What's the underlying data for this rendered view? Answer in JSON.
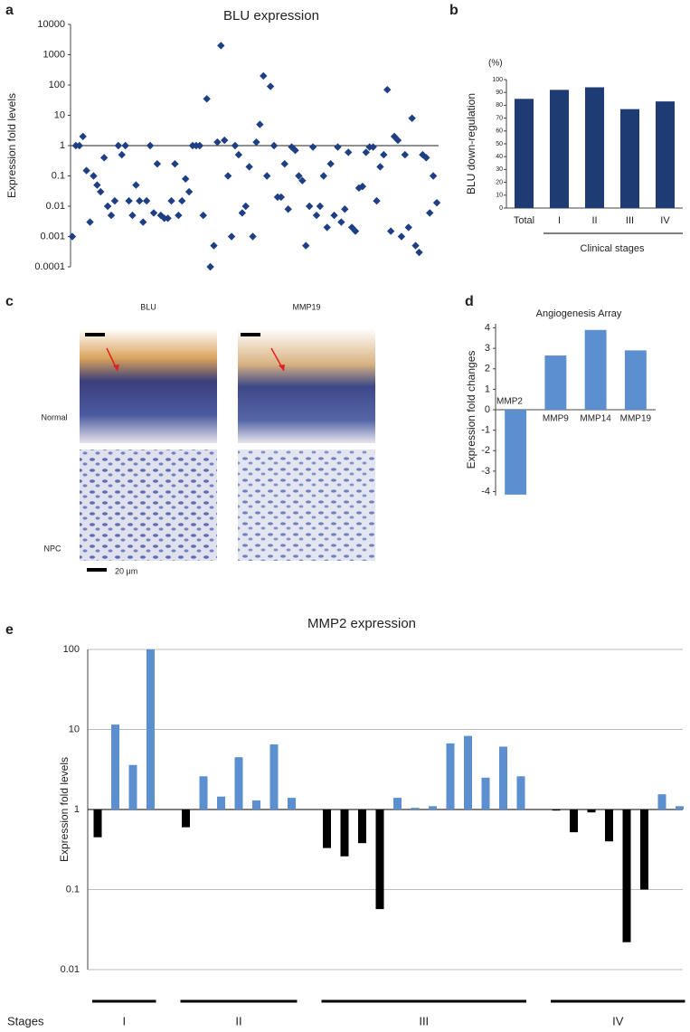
{
  "chart_data": [
    {
      "panel": "a",
      "type": "scatter",
      "title": "BLU expression",
      "y_label": "Expression fold levels",
      "values": [
        0.001,
        1,
        1,
        2,
        0.15,
        0.003,
        0.1,
        0.05,
        0.03,
        0.4,
        0.01,
        0.005,
        0.015,
        1,
        0.5,
        1,
        0.015,
        0.005,
        0.05,
        0.015,
        0.003,
        0.015,
        1,
        0.006,
        0.25,
        0.005,
        0.004,
        0.004,
        0.015,
        0.25,
        0.005,
        0.015,
        0.08,
        0.03,
        1,
        1,
        1,
        0.005,
        35,
        0.0001,
        0.0005,
        1.3,
        2000,
        1.5,
        0.1,
        0.001,
        1,
        0.5,
        0.006,
        0.01,
        0.2,
        0.001,
        1.3,
        5,
        200,
        0.1,
        90,
        1,
        0.02,
        0.02,
        0.25,
        0.008,
        0.9,
        0.7,
        0.1,
        0.07,
        0.0005,
        0.01,
        0.9,
        0.005,
        0.01,
        0.1,
        0.002,
        0.25,
        0.005,
        0.9,
        0.003,
        0.008,
        0.6,
        0.002,
        0.0015,
        0.04,
        0.045,
        0.6,
        0.9,
        0.9,
        0.015,
        0.2,
        0.5,
        70,
        0.0015,
        2,
        1.5,
        0.001,
        0.5,
        0.002,
        8,
        0.0005,
        0.0003,
        0.5,
        0.4,
        0.006,
        0.1,
        0.013
      ],
      "color": "#1f3f85",
      "log_y": true,
      "ylim": [
        0.0001,
        10000
      ],
      "yticks": [
        10000,
        1000,
        100,
        10,
        1,
        0.1,
        0.01,
        0.001,
        0.0001
      ],
      "reference_line": 1
    },
    {
      "panel": "b",
      "type": "bar",
      "unit_label": "(%)",
      "y_label": "BLU down-regulation",
      "categories": [
        "Total",
        "I",
        "II",
        "III",
        "IV"
      ],
      "values": [
        85,
        92,
        94,
        77,
        83
      ],
      "color": "#1f3b73",
      "ylim": [
        0,
        100
      ],
      "yticks": [
        0,
        10,
        20,
        30,
        40,
        50,
        60,
        70,
        80,
        90,
        100
      ],
      "group_label": "Clinical stages"
    },
    {
      "panel": "d",
      "type": "bar",
      "title": "Angiogenesis Array",
      "y_label": "Expression fold changes",
      "categories": [
        "MMP2",
        "MMP9",
        "MMP14",
        "MMP19"
      ],
      "values": [
        -4.15,
        2.65,
        3.9,
        2.9
      ],
      "color": "#5b8fd0",
      "ylim": [
        -4.2,
        4.2
      ],
      "yticks": [
        -4,
        -3,
        -2,
        -1,
        0,
        1,
        2,
        3,
        4
      ]
    },
    {
      "panel": "e",
      "type": "bar",
      "title": "MMP2  expression",
      "y_label": "Expression fold levels",
      "x_label": "Stages",
      "log_y": true,
      "ylim": [
        0.01,
        100
      ],
      "yticks": [
        100,
        10,
        1,
        0.1,
        0.01
      ],
      "baseline": 1,
      "grid": true,
      "color_above": "#5b8fd0",
      "color_below": "#000000",
      "stages": [
        {
          "label": "I",
          "values": [
            0.45,
            11.5,
            3.6,
            100
          ]
        },
        {
          "label": "II",
          "values": [
            0.6,
            2.6,
            1.45,
            4.5,
            1.3,
            6.5,
            1.4
          ]
        },
        {
          "label": "III",
          "values": [
            0.33,
            0.26,
            0.38,
            0.057,
            1.4,
            1.05,
            1.1,
            6.7,
            8.3,
            2.5,
            6.1,
            2.6
          ]
        },
        {
          "label": "IV",
          "values": [
            0.97,
            0.52,
            0.92,
            0.4,
            0.022,
            0.1,
            1.55,
            1.1
          ]
        }
      ]
    }
  ],
  "image_panel": {
    "panel": "c",
    "columns": [
      "BLU",
      "MMP19"
    ],
    "rows": [
      "Normal",
      "NPC"
    ],
    "scale_bar": "20 μm"
  }
}
